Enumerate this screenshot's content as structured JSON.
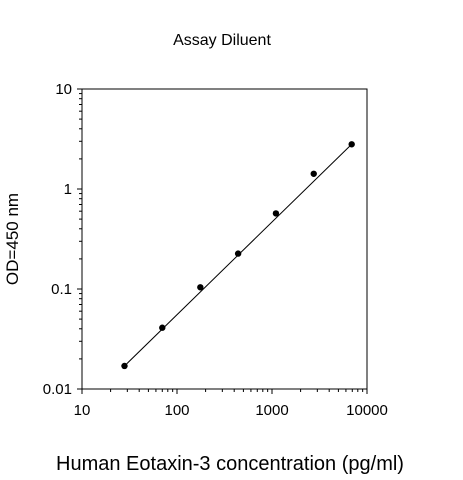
{
  "chart_data": {
    "type": "scatter",
    "title": "Assay Diluent",
    "xlabel": "Human Eotaxin-3 concentration (pg/ml)",
    "ylabel": "OD=450 nm",
    "x_scale": "log",
    "y_scale": "log",
    "xlim": [
      10,
      10000
    ],
    "ylim": [
      0.01,
      10
    ],
    "x_ticks": [
      "10",
      "100",
      "1000",
      "10000"
    ],
    "y_ticks": [
      "0.01",
      "0.1",
      "1",
      "10"
    ],
    "grid": false,
    "legend": "none",
    "marker_color": "#000000",
    "line_color": "#000000",
    "points": [
      {
        "x": 28,
        "y": 0.017
      },
      {
        "x": 70,
        "y": 0.041
      },
      {
        "x": 176,
        "y": 0.104
      },
      {
        "x": 440,
        "y": 0.226
      },
      {
        "x": 1100,
        "y": 0.57
      },
      {
        "x": 2750,
        "y": 1.42
      },
      {
        "x": 6900,
        "y": 2.8
      }
    ],
    "fit_line": {
      "x": [
        28,
        6900
      ],
      "y": [
        0.017,
        2.8
      ]
    }
  }
}
